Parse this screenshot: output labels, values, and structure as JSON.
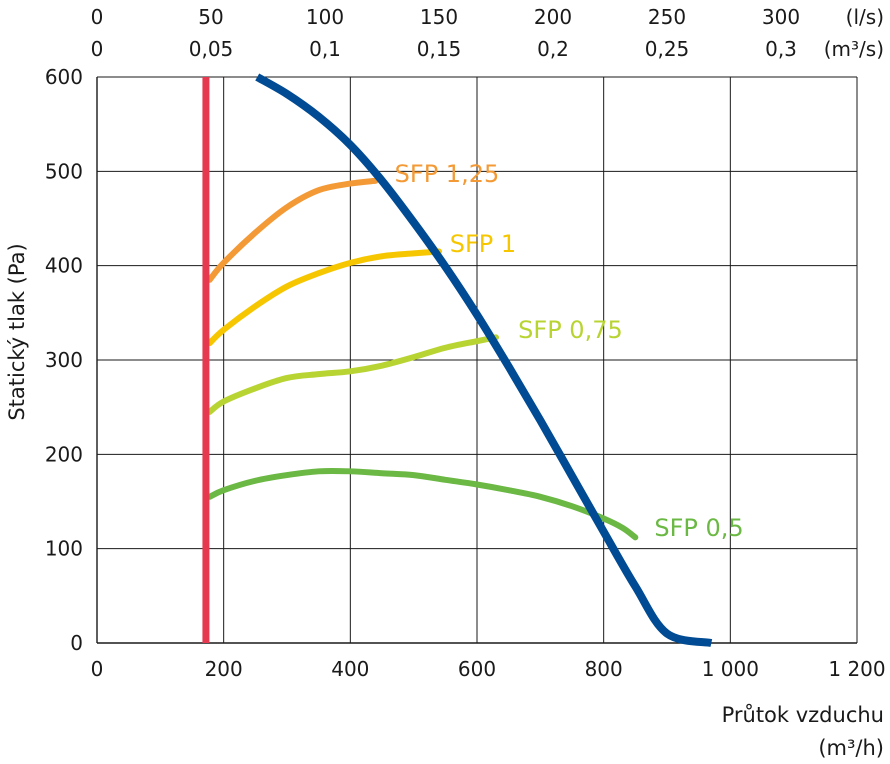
{
  "chart_data": {
    "type": "line",
    "title": "",
    "ylabel": "Statický tlak (Pa)",
    "xlabel_line1": "Průtok vzduchu",
    "xlabel_line2": "(m³/h)",
    "xlim": [
      0,
      1200
    ],
    "ylim": [
      0,
      600
    ],
    "x_ticks": [
      0,
      200,
      400,
      600,
      800,
      1000,
      1200
    ],
    "x_tick_labels": [
      "0",
      "200",
      "400",
      "600",
      "800",
      "1 000",
      "1 200"
    ],
    "y_ticks": [
      0,
      100,
      200,
      300,
      400,
      500,
      600
    ],
    "y_tick_labels": [
      "0",
      "100",
      "200",
      "300",
      "400",
      "500",
      "600"
    ],
    "grid": true,
    "top_axes": [
      {
        "unit": "(l/s)",
        "ticks": [
          {
            "label": "0",
            "x": 0
          },
          {
            "label": "50",
            "x": 180
          },
          {
            "label": "100",
            "x": 360
          },
          {
            "label": "150",
            "x": 540
          },
          {
            "label": "200",
            "x": 720
          },
          {
            "label": "250",
            "x": 900
          },
          {
            "label": "300",
            "x": 1080
          }
        ]
      },
      {
        "unit": "(m³/s)",
        "ticks": [
          {
            "label": "0",
            "x": 0
          },
          {
            "label": "0,05",
            "x": 180
          },
          {
            "label": "0,1",
            "x": 360
          },
          {
            "label": "0,15",
            "x": 540
          },
          {
            "label": "0,2",
            "x": 720
          },
          {
            "label": "0,25",
            "x": 900
          },
          {
            "label": "0,3",
            "x": 1080
          }
        ]
      }
    ],
    "series": [
      {
        "kind": "limit",
        "color": "#e63950",
        "points": [
          [
            172,
            0
          ],
          [
            172,
            600
          ]
        ]
      },
      {
        "kind": "fan",
        "color": "#004b93",
        "points": [
          [
            253,
            600
          ],
          [
            300,
            582
          ],
          [
            350,
            558
          ],
          [
            400,
            528
          ],
          [
            450,
            490
          ],
          [
            500,
            446
          ],
          [
            550,
            399
          ],
          [
            600,
            348
          ],
          [
            650,
            293
          ],
          [
            700,
            236
          ],
          [
            750,
            177
          ],
          [
            800,
            118
          ],
          [
            850,
            60
          ],
          [
            900,
            10
          ],
          [
            970,
            0
          ]
        ]
      },
      {
        "name": "SFP 1,25",
        "color": "#f39a36",
        "points": [
          [
            178,
            385
          ],
          [
            200,
            403
          ],
          [
            250,
            435
          ],
          [
            300,
            462
          ],
          [
            350,
            480
          ],
          [
            400,
            487
          ],
          [
            440,
            490
          ]
        ]
      },
      {
        "name": "SFP 1",
        "color": "#f6c700",
        "points": [
          [
            178,
            318
          ],
          [
            200,
            332
          ],
          [
            250,
            357
          ],
          [
            300,
            378
          ],
          [
            350,
            392
          ],
          [
            400,
            403
          ],
          [
            450,
            410
          ],
          [
            500,
            413
          ],
          [
            540,
            415
          ]
        ]
      },
      {
        "name": "SFP 0,75",
        "color": "#b8d433",
        "points": [
          [
            178,
            245
          ],
          [
            200,
            256
          ],
          [
            250,
            270
          ],
          [
            300,
            281
          ],
          [
            350,
            285
          ],
          [
            400,
            288
          ],
          [
            450,
            294
          ],
          [
            500,
            303
          ],
          [
            550,
            313
          ],
          [
            600,
            320
          ],
          [
            630,
            324
          ]
        ]
      },
      {
        "name": "SFP 0,5",
        "color": "#6bb844",
        "points": [
          [
            178,
            155
          ],
          [
            200,
            162
          ],
          [
            250,
            172
          ],
          [
            300,
            178
          ],
          [
            350,
            182
          ],
          [
            400,
            182
          ],
          [
            450,
            180
          ],
          [
            500,
            178
          ],
          [
            550,
            173
          ],
          [
            600,
            168
          ],
          [
            650,
            162
          ],
          [
            700,
            155
          ],
          [
            750,
            145
          ],
          [
            800,
            132
          ],
          [
            830,
            122
          ],
          [
            850,
            112
          ]
        ]
      }
    ],
    "annotations": [
      {
        "text": "SFP 1,25",
        "color": "#f39a36",
        "x": 470,
        "y": 497
      },
      {
        "text": "SFP 1",
        "color": "#f6c700",
        "x": 557,
        "y": 423
      },
      {
        "text": "SFP 0,75",
        "color": "#b8d433",
        "x": 665,
        "y": 332
      },
      {
        "text": "SFP 0,5",
        "color": "#6bb844",
        "x": 880,
        "y": 122
      }
    ]
  },
  "style": {
    "grid_color": "#1a1a1a",
    "text_color": "#1a1a1a"
  }
}
